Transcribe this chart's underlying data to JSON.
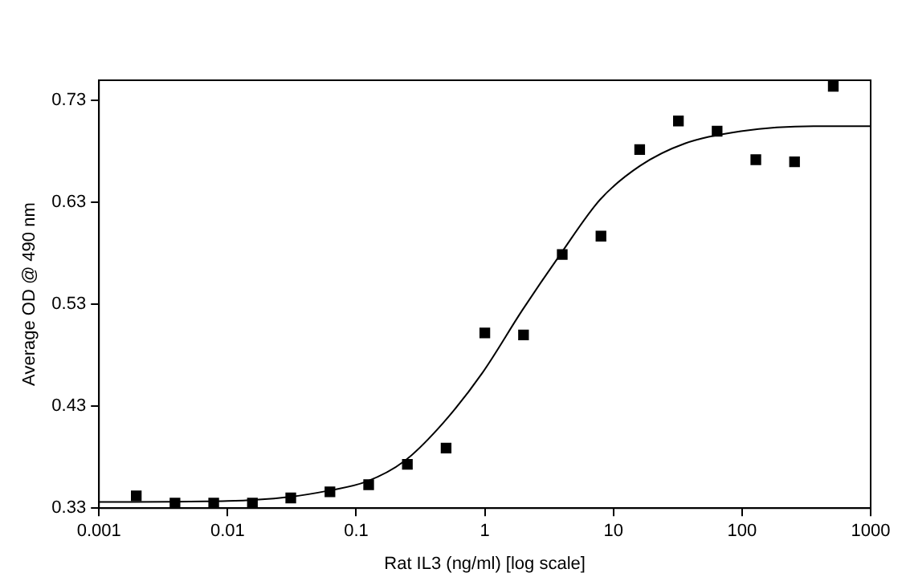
{
  "chart_data": {
    "type": "scatter",
    "xlabel": "Rat IL3 (ng/ml) [log scale]",
    "ylabel": "Average OD @ 490 nm",
    "log": "x",
    "grid": false,
    "legend": false,
    "marker": "square",
    "xlim": [
      0.001,
      1000
    ],
    "xticks": [
      {
        "value": 0.001,
        "label": "0.001"
      },
      {
        "value": 0.01,
        "label": "0.01"
      },
      {
        "value": 0.1,
        "label": "0.1"
      },
      1,
      10,
      100,
      1000
    ],
    "ylim": [
      0.33,
      0.75
    ],
    "yticks": [
      0.33,
      0.43,
      0.53,
      0.63,
      0.73
    ],
    "series": [
      {
        "color": "#000000",
        "x": [
          0.00195,
          0.0039,
          0.0078,
          0.0156,
          0.031,
          0.0625,
          0.125,
          0.25,
          0.5,
          1,
          2,
          4,
          8,
          16,
          32,
          64,
          128,
          256,
          512
        ],
        "values": [
          0.342,
          0.335,
          0.335,
          0.335,
          0.34,
          0.346,
          0.353,
          0.373,
          0.389,
          0.502,
          0.5,
          0.579,
          0.597,
          0.682,
          0.71,
          0.7,
          0.672,
          0.67,
          0.744
        ]
      },
      {
        "type": "line",
        "color": "#000000",
        "marker": "none",
        "x": [
          0.001,
          0.01,
          0.03,
          0.06,
          0.12,
          0.236,
          0.477,
          0.96,
          1.95,
          3.86,
          7.9,
          16.1,
          36,
          98,
          360,
          1000
        ],
        "values": [
          0.336,
          0.337,
          0.341,
          0.347,
          0.356,
          0.376,
          0.414,
          0.463,
          0.524,
          0.579,
          0.633,
          0.666,
          0.688,
          0.7,
          0.705,
          0.705
        ]
      }
    ]
  }
}
